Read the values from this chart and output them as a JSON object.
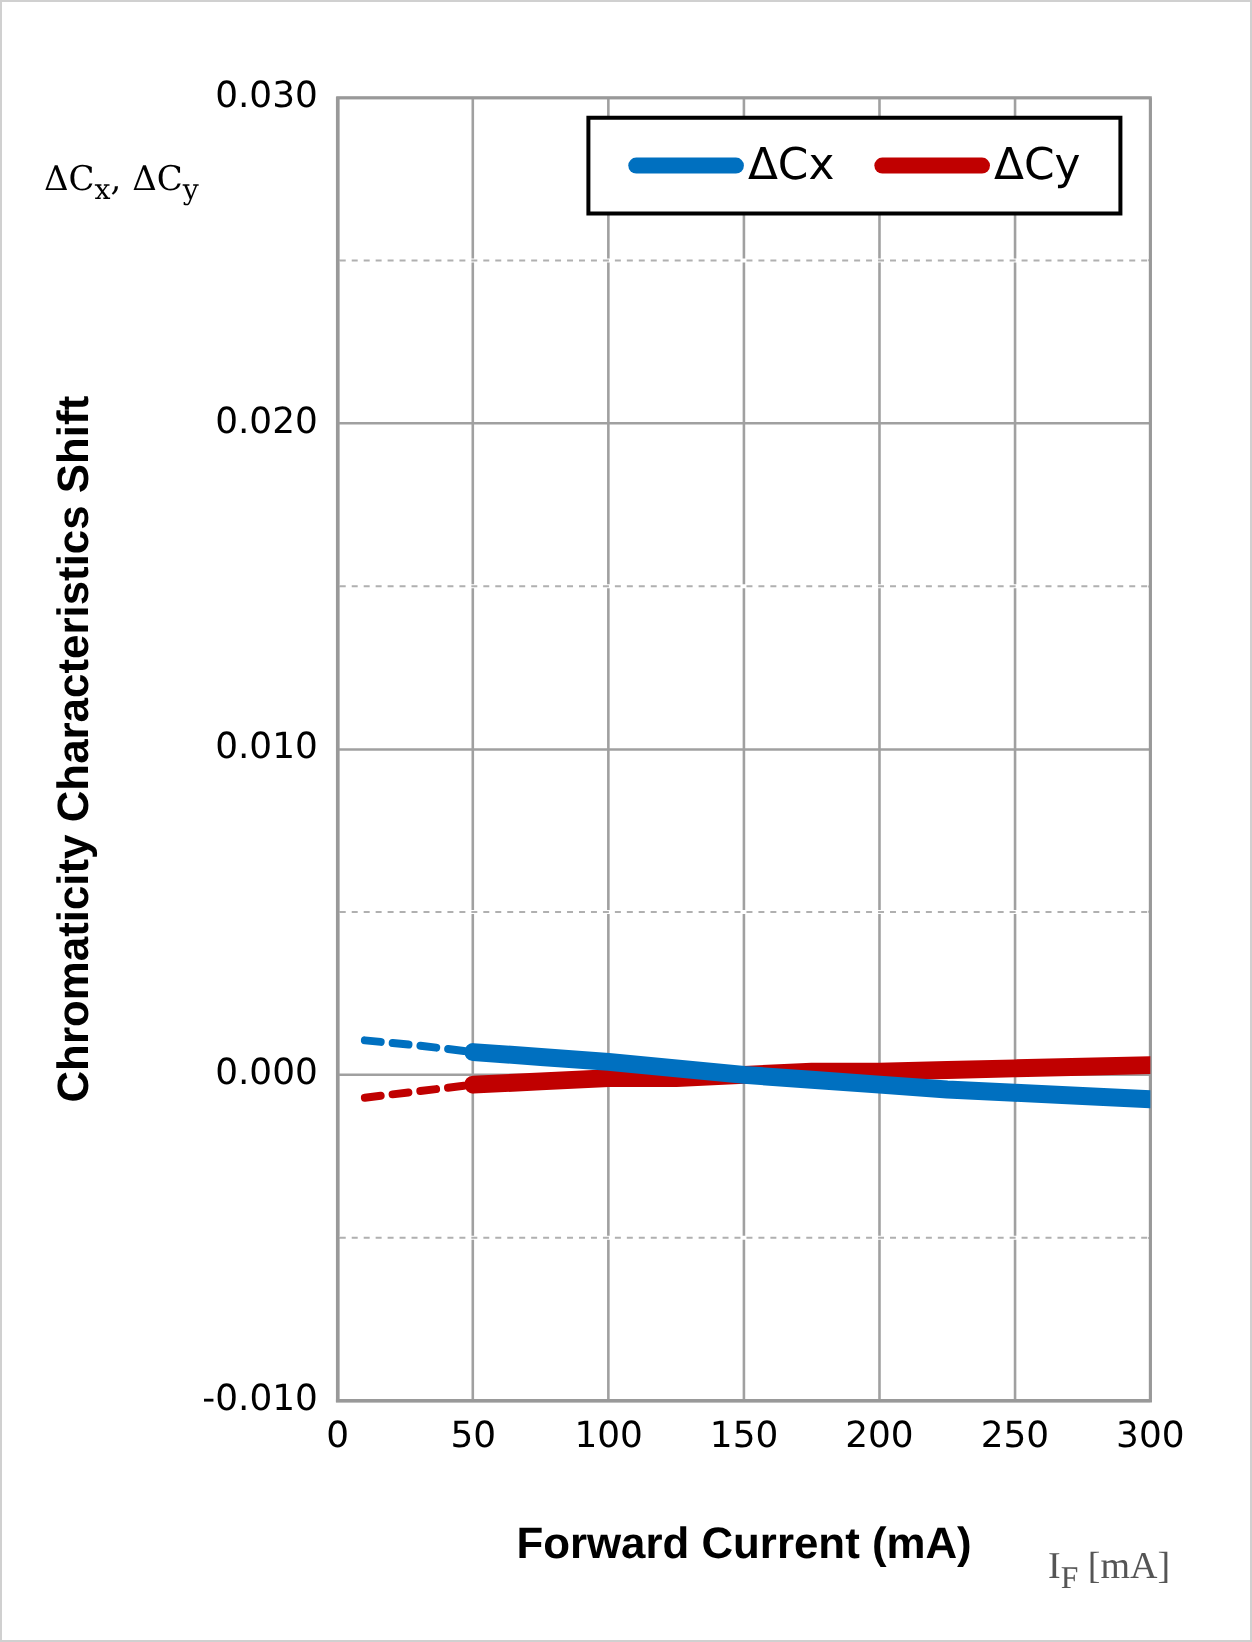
{
  "chart_data": {
    "type": "line",
    "xlabel": "Forward Current (mA)",
    "ylabel": "Chromaticity Characteristics Shift",
    "annotations": [
      "ΔC$_{x}$,  ΔC$_{y}$",
      "I$_{F}$ [mA]"
    ],
    "series": [
      {
        "name": "ΔCx",
        "color": "#0070c0",
        "x": [
          50,
          75,
          100,
          125,
          150,
          175,
          200,
          225,
          250,
          275,
          300
        ],
        "values": [
          0.0007,
          0.00055,
          0.0004,
          0.0002,
          0,
          -0.00015,
          -0.0003,
          -0.00045,
          -0.00055,
          -0.00065,
          -0.00075
        ]
      },
      {
        "name": "ΔCy",
        "color": "#c00000",
        "x": [
          50,
          75,
          100,
          125,
          150,
          175,
          200,
          225,
          250,
          275,
          300
        ],
        "values": [
          -0.0003,
          -0.0002,
          -0.0001,
          -0.0001,
          0,
          0.0001,
          0.0001,
          0.00015,
          0.0002,
          0.00025,
          0.0003
        ]
      },
      {
        "color": "#0070c0",
        "line_style": "dashed",
        "x": [
          10,
          30,
          50
        ],
        "values": [
          0.00106,
          0.0009,
          0.0007
        ]
      },
      {
        "color": "#c00000",
        "line_style": "dashed",
        "x": [
          10,
          30,
          50
        ],
        "values": [
          -0.0007,
          -0.0005,
          -0.0003
        ]
      }
    ],
    "xlim": [
      0,
      300
    ],
    "xticks": [
      0,
      50,
      100,
      150,
      200,
      250,
      300
    ],
    "ylim": [
      -0.01,
      0.03
    ],
    "yticks": [
      {
        "value": -0.01,
        "label": "-0.010"
      },
      {
        "value": -0.005,
        "label": null
      },
      {
        "value": 0,
        "label": "0.000"
      },
      {
        "value": 0.005,
        "label": null
      },
      {
        "value": 0.01,
        "label": "0.010"
      },
      {
        "value": 0.015,
        "label": null
      },
      {
        "value": 0.02,
        "label": "0.020"
      },
      {
        "value": 0.025,
        "label": null
      },
      {
        "value": 0.03,
        "label": "0.030"
      }
    ],
    "grid": true,
    "legend": "top right",
    "marker": "none",
    "line_style": "solid"
  }
}
